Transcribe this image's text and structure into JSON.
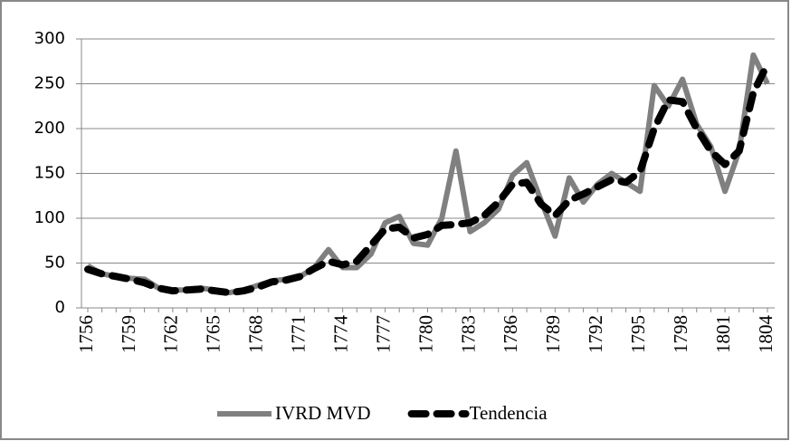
{
  "chart_data": {
    "type": "line",
    "x": [
      1756,
      1757,
      1758,
      1759,
      1760,
      1761,
      1762,
      1763,
      1764,
      1765,
      1766,
      1767,
      1768,
      1769,
      1770,
      1771,
      1772,
      1773,
      1774,
      1775,
      1776,
      1777,
      1778,
      1779,
      1780,
      1781,
      1782,
      1783,
      1784,
      1785,
      1786,
      1787,
      1788,
      1789,
      1790,
      1791,
      1792,
      1793,
      1794,
      1795,
      1796,
      1797,
      1798,
      1799,
      1800,
      1801,
      1802,
      1803,
      1804
    ],
    "series": [
      {
        "name": "IVRD MVD",
        "color": "#808080",
        "line_style": "solid",
        "values": [
          47,
          38,
          35,
          33,
          32,
          22,
          20,
          20,
          22,
          20,
          17,
          20,
          25,
          30,
          32,
          35,
          45,
          65,
          45,
          45,
          60,
          95,
          102,
          72,
          70,
          100,
          175,
          85,
          95,
          110,
          148,
          162,
          120,
          80,
          145,
          118,
          138,
          150,
          140,
          130,
          248,
          225,
          255,
          205,
          180,
          130,
          175,
          282,
          250
        ]
      },
      {
        "name": "Tendencia",
        "color": "#000000",
        "line_style": "dashed",
        "values": [
          43,
          38,
          35,
          32,
          28,
          22,
          19,
          20,
          21,
          19,
          17,
          19,
          23,
          29,
          31,
          35,
          44,
          52,
          48,
          52,
          70,
          88,
          90,
          78,
          82,
          92,
          93,
          95,
          103,
          118,
          138,
          140,
          116,
          103,
          120,
          127,
          135,
          143,
          140,
          152,
          200,
          232,
          230,
          200,
          175,
          160,
          175,
          240,
          272
        ]
      }
    ],
    "xlim": [
      1756,
      1804
    ],
    "xticks": [
      1756,
      1759,
      1762,
      1765,
      1768,
      1771,
      1774,
      1777,
      1780,
      1783,
      1786,
      1789,
      1792,
      1795,
      1798,
      1801,
      1804
    ],
    "ylim": [
      0,
      300
    ],
    "yticks": [
      0,
      50,
      100,
      150,
      200,
      250,
      300
    ],
    "grid": true,
    "legend": "bottom"
  }
}
